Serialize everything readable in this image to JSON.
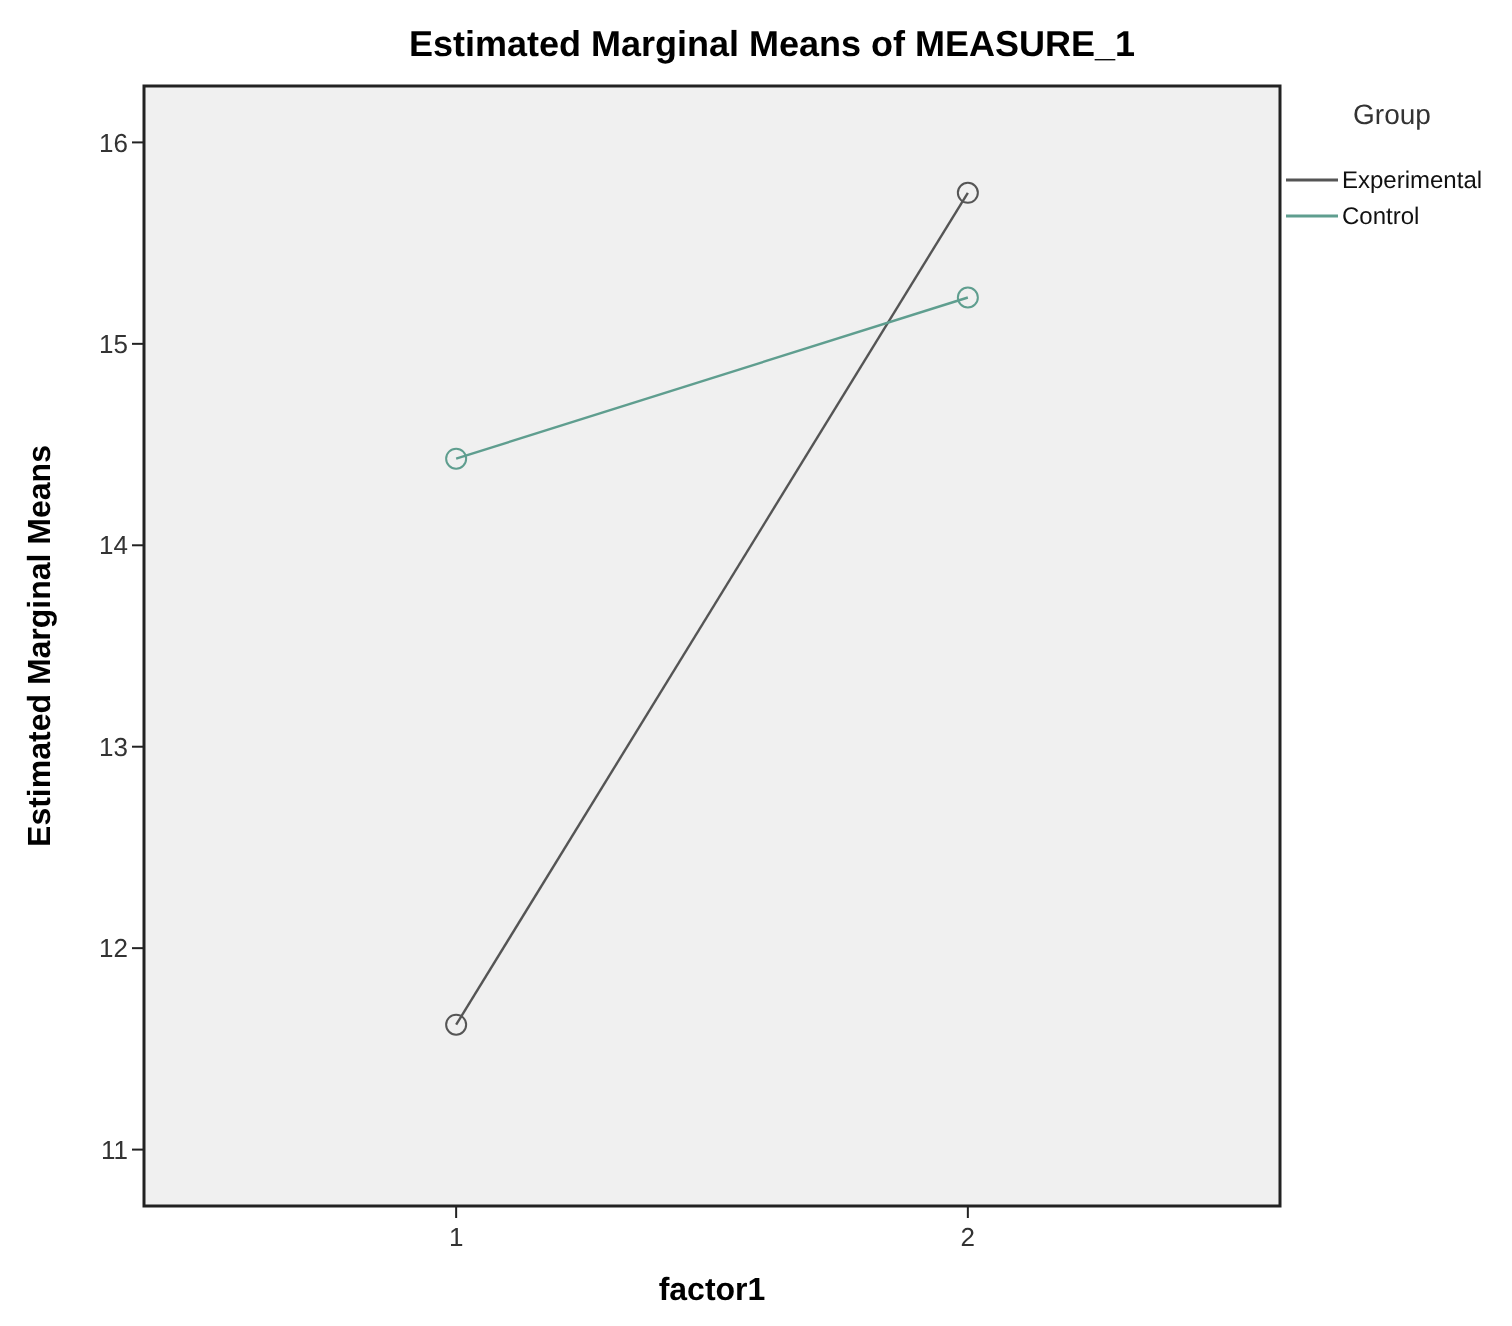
{
  "chart_data": {
    "type": "line",
    "title": "Estimated Marginal Means of MEASURE_1",
    "xlabel": "factor1",
    "ylabel": "Estimated Marginal Means",
    "legend_title": "Group",
    "categories": [
      "1",
      "2"
    ],
    "series": [
      {
        "name": "Experimental",
        "color": "#555555",
        "values": [
          11.62,
          15.75
        ]
      },
      {
        "name": "Control",
        "color": "#5f9e8f",
        "values": [
          14.43,
          15.23
        ]
      }
    ],
    "ylim": [
      10.72,
      16.28
    ],
    "yticks": [
      11,
      12,
      13,
      14,
      15,
      16
    ],
    "grid": false,
    "legend": "top right",
    "marker": "circle",
    "line_style": "solid"
  }
}
